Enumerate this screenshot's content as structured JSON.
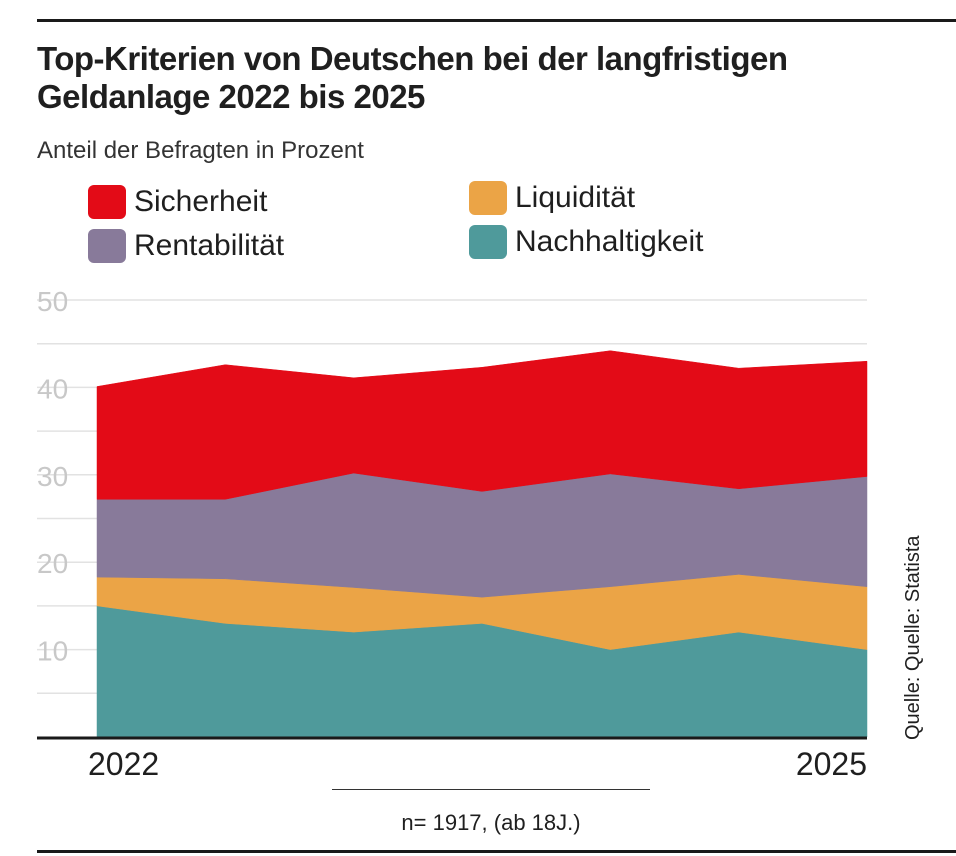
{
  "chart_data": {
    "type": "area",
    "stacked": true,
    "title": "Top-Kriterien von Deutschen bei der langfristigen Geldanlage 2022 bis 2025",
    "subtitle": "Anteil der Befragten in Prozent",
    "x": [
      "2022",
      "",
      "",
      "",
      "",
      "",
      "2025"
    ],
    "x_tick_labels": [
      "2022",
      "2025"
    ],
    "ylim": [
      0,
      50
    ],
    "y_ticks": [
      10,
      20,
      30,
      40,
      50
    ],
    "y_tick_labels": [
      "10",
      "20",
      "30",
      "40",
      "50"
    ],
    "grid": true,
    "legend_position": "top",
    "series": [
      {
        "name": "Nachhaltigkeit",
        "color": "#4f9a9b",
        "values": [
          15,
          13,
          12,
          13,
          10,
          12,
          10
        ]
      },
      {
        "name": "Liquidität",
        "color": "#eba446",
        "values": [
          3.3,
          5.1,
          5.1,
          3.0,
          7.2,
          6.6,
          7.2
        ]
      },
      {
        "name": "Rentabilität",
        "color": "#887a9a",
        "values": [
          8.9,
          9.1,
          13.1,
          12.1,
          12.9,
          9.8,
          12.6
        ]
      },
      {
        "name": "Sicherheit",
        "color": "#e30b17",
        "values": [
          12.9,
          15.4,
          10.9,
          14.2,
          14.1,
          13.8,
          13.2
        ]
      }
    ],
    "legend_order": [
      "Sicherheit",
      "Rentabilität",
      "Liquidität",
      "Nachhaltigkeit"
    ],
    "annotations": [
      "n= 1917, (ab 18J.)",
      "Quelle: Quelle: Statista"
    ]
  },
  "note": "n= 1917, (ab 18J.)",
  "source": "Quelle: Quelle: Statista"
}
